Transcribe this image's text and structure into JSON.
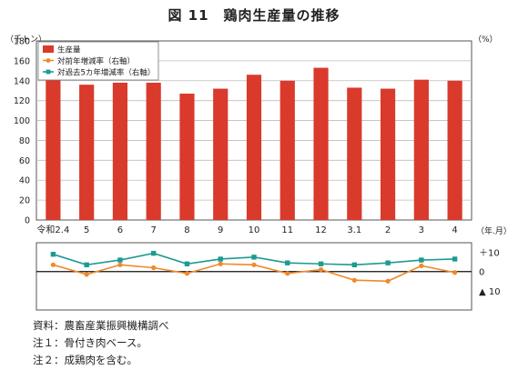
{
  "title": "図 11　鶏肉生産量の推移",
  "notes": [
    "資料：農畜産業振興機構調べ",
    "注１：骨付き肉ベース。",
    "注２：成鶏肉を含む。"
  ],
  "chart_data": {
    "type": "bar",
    "categories": [
      "令和2.4",
      "5",
      "6",
      "7",
      "8",
      "9",
      "10",
      "11",
      "12",
      "3.1",
      "2",
      "3",
      "4"
    ],
    "left_unit": "（千トン）",
    "right_unit": "（%）",
    "x_unit": "（年.月）",
    "ylim": [
      0,
      180
    ],
    "yticks": [
      0,
      20,
      40,
      60,
      80,
      100,
      120,
      140,
      160,
      180
    ],
    "y2lim": [
      -20,
      15
    ],
    "y2ticks": [
      {
        "value": 10,
        "label": "＋10"
      },
      {
        "value": 0,
        "label": "0"
      },
      {
        "value": -10,
        "label": "▲ 10"
      }
    ],
    "grid": true,
    "legend_position": "top-left",
    "series": [
      {
        "name": "生産量",
        "kind": "bar",
        "axis": "left",
        "color": "#d93a2b",
        "values": [
          141,
          136,
          138,
          138,
          127,
          132,
          146,
          140,
          153,
          133,
          132,
          141,
          140
        ]
      },
      {
        "name": "対前年増減率（右軸）",
        "kind": "line",
        "axis": "right",
        "color": "#f0892a",
        "marker": "circle",
        "values": [
          3.5,
          -1.5,
          3.5,
          2.0,
          -1.0,
          4.0,
          3.5,
          -1.0,
          1.0,
          -4.5,
          -5.0,
          3.0,
          -0.5
        ]
      },
      {
        "name": "対過去5カ年増減率（右軸）",
        "kind": "line",
        "axis": "right",
        "color": "#1d9a92",
        "marker": "square",
        "values": [
          9.0,
          3.5,
          6.0,
          9.5,
          4.0,
          6.5,
          7.5,
          4.5,
          4.0,
          3.5,
          4.5,
          6.0,
          6.5
        ]
      }
    ]
  }
}
